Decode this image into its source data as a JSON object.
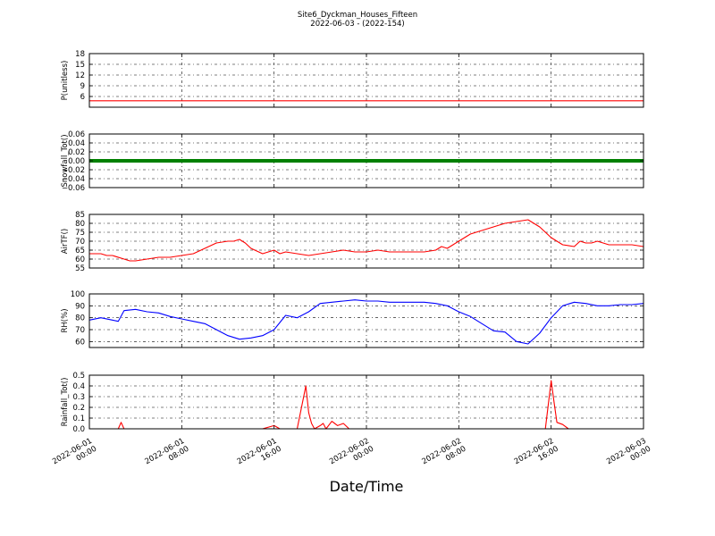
{
  "figure": {
    "title_line1": "Site6_Dyckman_Houses_Fifteen",
    "title_line2": "2022-06-03 - (2022-154)",
    "xlabel": "Date/Time"
  },
  "chart_data": [
    {
      "type": "line",
      "ylabel": "P(unitless)",
      "color": "#ff0000",
      "ylim": [
        3,
        18
      ],
      "yticks": [
        6,
        9,
        12,
        15,
        18
      ],
      "ytick_labels": [
        "6",
        "9",
        "12",
        "15",
        "18"
      ],
      "grid": true,
      "series": [
        {
          "x": [
            0,
            0.5,
            2,
            4,
            6,
            8,
            10,
            12,
            14,
            16,
            17,
            17.5,
            18,
            19,
            19.5,
            20,
            20.5,
            21,
            21.5,
            22,
            22.5,
            23,
            24,
            25,
            26,
            28,
            30,
            32,
            34,
            36,
            38,
            39,
            40,
            40.5,
            41,
            41.5,
            42,
            42.3,
            42.6,
            43,
            43.5,
            44,
            45,
            46,
            47,
            48
          ],
          "y": [
            4.8,
            4.8,
            4.8,
            4.8,
            4.8,
            4.8,
            4.8,
            4.8,
            4.8,
            4.8,
            4.8,
            4.8,
            4.8,
            4.8,
            4.8,
            4.8,
            4.8,
            4.8,
            4.8,
            4.8,
            4.8,
            4.8,
            4.8,
            4.8,
            4.8,
            4.8,
            4.8,
            4.8,
            4.8,
            4.8,
            4.8,
            4.8,
            4.8,
            4.8,
            4.8,
            4.8,
            4.8,
            4.8,
            4.8,
            4.8,
            4.8,
            4.8,
            4.8,
            4.8,
            4.8,
            4.8
          ]
        }
      ]
    },
    {
      "type": "line",
      "ylabel": "Snowfall_Tot()",
      "color": "#008000",
      "marker": "dot",
      "ylim": [
        -0.06,
        0.06
      ],
      "yticks": [
        -0.06,
        -0.04,
        -0.02,
        0.0,
        0.02,
        0.04,
        0.06
      ],
      "ytick_labels": [
        "−0.06",
        "−0.04",
        "−0.02",
        "0.00",
        "0.02",
        "0.04",
        "0.06"
      ],
      "grid": true,
      "series": [
        {
          "x": [
            0,
            48
          ],
          "y": [
            0,
            0
          ]
        }
      ]
    },
    {
      "type": "line",
      "ylabel": "AirTF()",
      "color": "#ff0000",
      "ylim": [
        55,
        85
      ],
      "yticks": [
        55,
        60,
        65,
        70,
        75,
        80,
        85
      ],
      "ytick_labels": [
        "55",
        "60",
        "65",
        "70",
        "75",
        "80",
        "85"
      ],
      "grid": true,
      "series": [
        {
          "x": [
            0,
            1,
            1.5,
            2,
            3,
            3.5,
            4,
            5,
            6,
            7,
            8,
            9,
            10,
            11,
            12,
            12.5,
            13,
            13.5,
            14,
            15,
            16,
            16.5,
            17,
            18,
            19,
            20,
            21,
            22,
            23,
            24,
            25,
            26,
            27,
            28,
            29,
            30,
            30.5,
            31,
            32,
            33,
            34,
            35,
            36,
            37,
            38,
            39,
            40,
            41,
            42,
            42.5,
            43,
            43.5,
            44,
            45,
            46,
            47,
            48
          ],
          "y": [
            63,
            63,
            62,
            62,
            60,
            59,
            59,
            60,
            61,
            61,
            62,
            63,
            66,
            69,
            70,
            70,
            71,
            69,
            66,
            63,
            65,
            63,
            64,
            63,
            62,
            63,
            64,
            65,
            64,
            64,
            65,
            64,
            64,
            64,
            64,
            65,
            67,
            66,
            70,
            74,
            76,
            78,
            80,
            81,
            82,
            78,
            72,
            68,
            67,
            70,
            69,
            69,
            70,
            68,
            68,
            68,
            67
          ]
        }
      ]
    },
    {
      "type": "line",
      "ylabel": "RH(%)",
      "color": "#0000ff",
      "ylim": [
        55,
        100
      ],
      "yticks": [
        60,
        70,
        80,
        90,
        100
      ],
      "ytick_labels": [
        "60",
        "70",
        "80",
        "90",
        "100"
      ],
      "grid": true,
      "series": [
        {
          "x": [
            0,
            1,
            2,
            2.5,
            3,
            4,
            5,
            6,
            7,
            8,
            9,
            10,
            11,
            12,
            13,
            14,
            15,
            16,
            17,
            18,
            19,
            20,
            21,
            22,
            23,
            24,
            25,
            26,
            27,
            28,
            29,
            30,
            31,
            32,
            33,
            34,
            35,
            36,
            37,
            38,
            39,
            40,
            41,
            42,
            43,
            44,
            45,
            46,
            47,
            48
          ],
          "y": [
            78,
            80,
            78,
            77,
            86,
            87,
            85,
            84,
            81,
            79,
            77,
            75,
            70,
            65,
            62,
            63,
            65,
            70,
            82,
            80,
            85,
            92,
            93,
            94,
            95,
            94,
            94,
            93,
            93,
            93,
            93,
            92,
            90,
            85,
            81,
            75,
            69,
            68,
            60,
            58,
            67,
            80,
            90,
            93,
            92,
            90,
            90,
            91,
            91,
            92
          ]
        }
      ]
    },
    {
      "type": "line",
      "ylabel": "Rainfall_Tot()",
      "color": "#ff0000",
      "ylim": [
        0,
        0.5
      ],
      "yticks": [
        0.0,
        0.1,
        0.2,
        0.3,
        0.4,
        0.5
      ],
      "ytick_labels": [
        "0.0",
        "0.1",
        "0.2",
        "0.3",
        "0.4",
        "0.5"
      ],
      "grid": true,
      "series": [
        {
          "x": [
            0,
            2.5,
            2.75,
            3,
            3.5,
            5,
            10,
            15,
            16,
            16.5,
            17,
            18,
            18.75,
            19,
            19.25,
            19.5,
            20,
            20.25,
            20.5,
            21,
            21.25,
            21.5,
            22,
            22.5,
            25,
            30,
            35,
            38,
            39,
            39.5,
            40,
            40.25,
            40.5,
            41,
            41.5,
            42,
            45,
            48
          ],
          "y": [
            0,
            0,
            0.06,
            0,
            0,
            0,
            0,
            0,
            0.03,
            0,
            0,
            0,
            0.4,
            0.15,
            0.05,
            0,
            0.03,
            0.05,
            0,
            0.07,
            0.05,
            0.03,
            0.05,
            0,
            0,
            0,
            0,
            0,
            0,
            0,
            0.45,
            0.25,
            0.06,
            0.04,
            0,
            0,
            0,
            0
          ]
        }
      ]
    }
  ],
  "x_axis": {
    "range_hours": [
      0,
      48
    ],
    "ticks_hours": [
      0,
      8,
      16,
      24,
      32,
      40,
      48
    ],
    "tick_labels": [
      [
        "2022-06-01",
        "00:00"
      ],
      [
        "2022-06-01",
        "08:00"
      ],
      [
        "2022-06-01",
        "16:00"
      ],
      [
        "2022-06-02",
        "00:00"
      ],
      [
        "2022-06-02",
        "08:00"
      ],
      [
        "2022-06-02",
        "16:00"
      ],
      [
        "2022-06-03",
        "00:00"
      ]
    ]
  }
}
